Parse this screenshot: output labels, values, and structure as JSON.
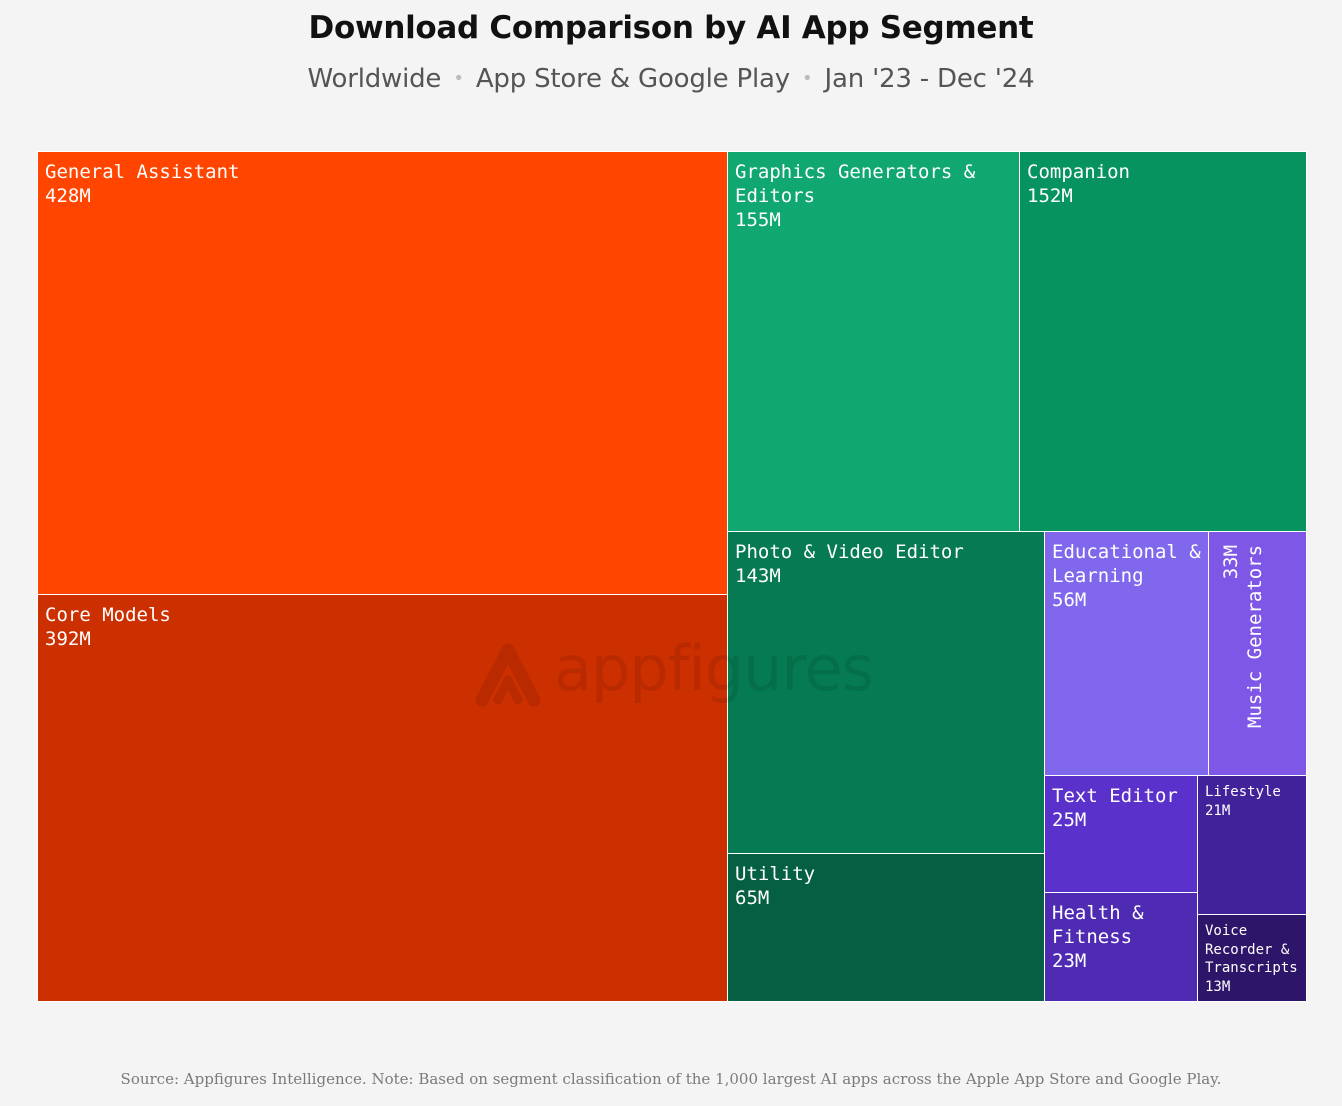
{
  "title": "Download Comparison by AI App Segment",
  "subtitle": {
    "parts": [
      "Worldwide",
      "App Store & Google Play",
      "Jan '23 - Dec '24"
    ],
    "separator": "•"
  },
  "watermark": {
    "text": "appfigures",
    "icon": "appfigures-logo-icon"
  },
  "footer": "Source: Appfigures Intelligence.  Note: Based on segment classification of the 1,000 largest AI apps across the Apple App Store and Google Play.",
  "chart_data": {
    "type": "treemap",
    "title": "Download Comparison by AI App Segment",
    "unit": "M",
    "items": [
      {
        "name": "General Assistant",
        "value": 428,
        "label": "428M",
        "color": "#ff4500"
      },
      {
        "name": "Core Models",
        "value": 392,
        "label": "392M",
        "color": "#cc2f00"
      },
      {
        "name": "Graphics Generators & Editors",
        "value": 155,
        "label": "155M",
        "color": "#10a870"
      },
      {
        "name": "Companion",
        "value": 152,
        "label": "152M",
        "color": "#07935f"
      },
      {
        "name": "Photo & Video Editor",
        "value": 143,
        "label": "143M",
        "color": "#067a52"
      },
      {
        "name": "Utility",
        "value": 65,
        "label": "65M",
        "color": "#055f42"
      },
      {
        "name": "Educational & Learning",
        "value": 56,
        "label": "56M",
        "color": "#8067eb"
      },
      {
        "name": "Music Generators",
        "value": 33,
        "label": "33M",
        "color": "#7e57e6"
      },
      {
        "name": "Text Editor",
        "value": 25,
        "label": "25M",
        "color": "#5b31cc"
      },
      {
        "name": "Health & Fitness",
        "value": 23,
        "label": "23M",
        "color": "#4f2ab3"
      },
      {
        "name": "Lifestyle",
        "value": 21,
        "label": "21M",
        "color": "#42229a"
      },
      {
        "name": "Voice Recorder & Transcripts",
        "value": 13,
        "label": "13M",
        "color": "#2d1669"
      }
    ]
  }
}
